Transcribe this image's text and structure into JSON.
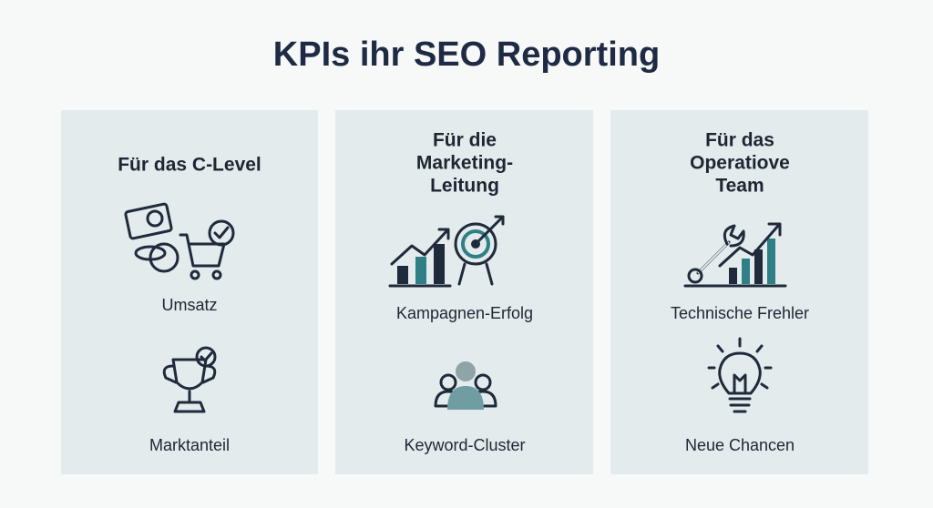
{
  "title": "KPIs ihr SEO Reporting",
  "columns": [
    {
      "heading": [
        "Für das C-Level"
      ],
      "items": [
        "Umsatz",
        "Marktanteil"
      ]
    },
    {
      "heading": [
        "Für die",
        "Marketing-",
        "Leitung"
      ],
      "items": [
        "Kampagnen-Erfolg",
        "Keyword-Cluster"
      ]
    },
    {
      "heading": [
        "Für das",
        "Operatiove",
        "Team"
      ],
      "items": [
        "Technische Frehler",
        "Neue Chancen"
      ]
    }
  ]
}
